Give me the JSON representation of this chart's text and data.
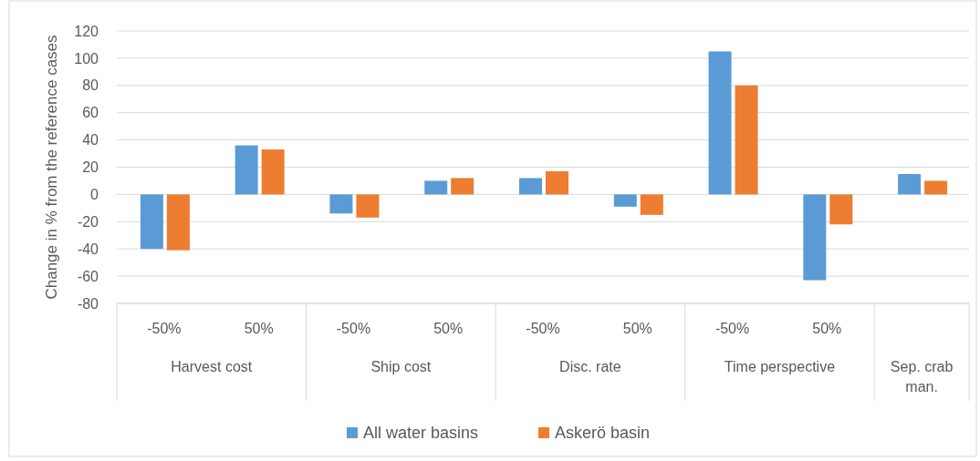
{
  "chart_data": {
    "type": "bar",
    "ylabel": "Change in % from the reference cases",
    "categories": [
      "-50%",
      "50%",
      "-50%",
      "50%",
      "-50%",
      "50%",
      "-50%",
      "50%",
      null
    ],
    "series": [
      {
        "name": "All water basins",
        "color": "#5b9bd5",
        "values": [
          -40,
          36,
          -14,
          10,
          12,
          -9,
          105,
          -63,
          15
        ]
      },
      {
        "name": "Askerö basin",
        "color": "#ed7d31",
        "values": [
          -41,
          33,
          -17,
          12,
          17,
          -15,
          80,
          -22,
          10
        ]
      }
    ],
    "annotations": [
      "Harvest cost",
      "Ship cost",
      "Disc. rate",
      "Time perspective",
      "Sep. crab man."
    ],
    "ylim": [
      -80,
      120
    ],
    "yticks": [
      -80,
      -60,
      -40,
      -20,
      0,
      20,
      40,
      60,
      80,
      100,
      120
    ],
    "grid": "y",
    "legend": "bottom"
  }
}
